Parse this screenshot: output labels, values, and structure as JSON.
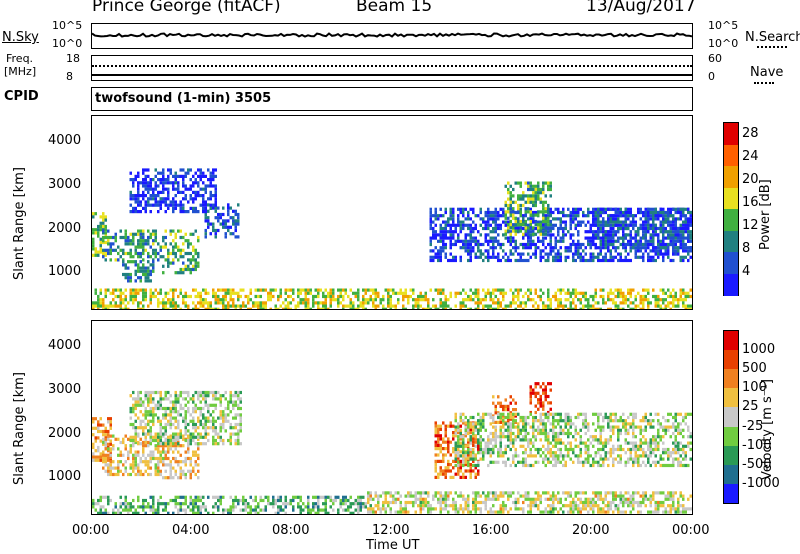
{
  "header": {
    "station": "Prince George (fitACF)",
    "beam": "Beam 15",
    "date": "13/Aug/2017"
  },
  "strip": {
    "nsky_label": "N.Sky",
    "nsky_left_top": "10^5",
    "nsky_left_bottom": "10^0",
    "nsky_right_top": "10^5",
    "nsky_right_bottom": "10^0",
    "nsearch_label": "N.Search",
    "freq_label": "Freq.",
    "freq_unit": "[MHz]",
    "freq_top": "18",
    "freq_bottom": "8",
    "nave_top": "60",
    "nave_bottom": "0",
    "nave_label": "Nave",
    "cpid_label": "CPID",
    "cpid_text": "twofsound (1-min) 3505"
  },
  "chart_data": [
    {
      "type": "heatmap",
      "name": "power",
      "ylabel": "Slant Range [km]",
      "ylim": [
        180,
        4600
      ],
      "yticks": [
        "1000",
        "2000",
        "3000",
        "4000"
      ],
      "xlim": [
        0,
        24
      ],
      "colorbar_label": "Power [dB]",
      "colorbar_ticks": [
        "4",
        "8",
        "12",
        "16",
        "20",
        "24",
        "28"
      ],
      "colorbar_range": [
        0,
        30
      ],
      "colorbar_colors": [
        "#1a1aff",
        "#2050d0",
        "#208080",
        "#40b040",
        "#e8e020",
        "#f0a000",
        "#ff6000",
        "#e00000"
      ],
      "regions": [
        {
          "t0": 0.0,
          "t1": 0.6,
          "r0": 1400,
          "r1": 2400,
          "level": 0.45
        },
        {
          "t0": 0.4,
          "t1": 2.8,
          "r0": 1300,
          "r1": 2000,
          "level": 0.35
        },
        {
          "t0": 1.2,
          "t1": 2.5,
          "r0": 800,
          "r1": 1300,
          "level": 0.3
        },
        {
          "t0": 2.8,
          "t1": 4.2,
          "r0": 1000,
          "r1": 2000,
          "level": 0.4
        },
        {
          "t0": 4.5,
          "t1": 5.9,
          "r0": 1800,
          "r1": 2600,
          "level": 0.2
        },
        {
          "t0": 1.5,
          "t1": 5.0,
          "r0": 2400,
          "r1": 3400,
          "level": 0.1
        },
        {
          "t0": 0.0,
          "t1": 24.0,
          "r0": 200,
          "r1": 650,
          "level": 0.55
        },
        {
          "t0": 13.5,
          "t1": 24.0,
          "r0": 1300,
          "r1": 2500,
          "level": 0.15
        },
        {
          "t0": 16.5,
          "t1": 18.3,
          "r0": 1900,
          "r1": 3100,
          "level": 0.4
        },
        {
          "t0": 20.0,
          "t1": 24.0,
          "r0": 1600,
          "r1": 2500,
          "level": 0.2
        }
      ]
    },
    {
      "type": "heatmap",
      "name": "velocity",
      "ylabel": "Slant Range [km]",
      "ylim": [
        180,
        4600
      ],
      "yticks": [
        "1000",
        "2000",
        "3000",
        "4000"
      ],
      "xlim": [
        0,
        24
      ],
      "xticks": [
        "00:00",
        "04:00",
        "08:00",
        "12:00",
        "16:00",
        "20:00",
        "00:00"
      ],
      "xlabel": "Time UT",
      "colorbar_label": "Velocity [m s⁻¹]",
      "colorbar_ticks": [
        "1000",
        "500",
        "100",
        "25",
        "-25",
        "-100",
        "-500",
        "-1000"
      ],
      "colorbar_colors": [
        "#1a1aff",
        "#1f6f8f",
        "#2a9a55",
        "#70cc40",
        "#c8c8c8",
        "#f0c040",
        "#f08020",
        "#e84000",
        "#e00000"
      ],
      "regions": [
        {
          "t0": 0.0,
          "t1": 0.8,
          "r0": 1400,
          "r1": 2400,
          "level": 0.7
        },
        {
          "t0": 0.4,
          "t1": 2.8,
          "r0": 1100,
          "r1": 2000,
          "level": 0.55
        },
        {
          "t0": 2.8,
          "t1": 4.2,
          "r0": 1000,
          "r1": 2000,
          "level": 0.6
        },
        {
          "t0": 1.5,
          "t1": 6.0,
          "r0": 1800,
          "r1": 3000,
          "level": 0.45
        },
        {
          "t0": 0.0,
          "t1": 11.0,
          "r0": 200,
          "r1": 600,
          "level": 0.35
        },
        {
          "t0": 11.0,
          "t1": 24.0,
          "r0": 200,
          "r1": 700,
          "level": 0.5
        },
        {
          "t0": 13.7,
          "t1": 15.5,
          "r0": 1000,
          "r1": 2300,
          "level": 0.75
        },
        {
          "t0": 16.0,
          "t1": 17.0,
          "r0": 2300,
          "r1": 2900,
          "level": 0.75
        },
        {
          "t0": 17.5,
          "t1": 18.4,
          "r0": 2500,
          "r1": 3200,
          "level": 0.85
        },
        {
          "t0": 14.5,
          "t1": 24.0,
          "r0": 1300,
          "r1": 2500,
          "level": 0.45
        }
      ]
    }
  ]
}
